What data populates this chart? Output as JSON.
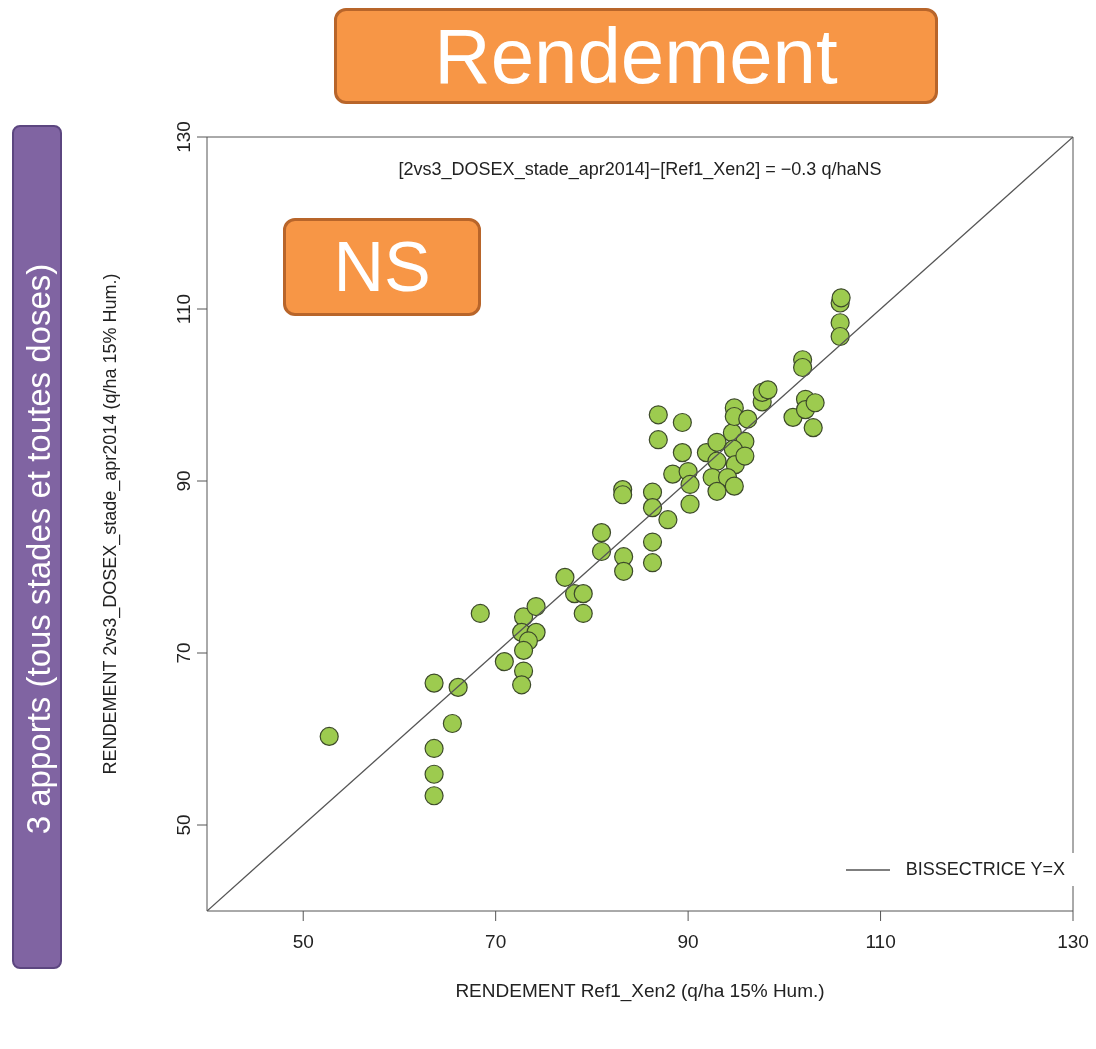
{
  "chart_data": {
    "type": "scatter",
    "title": "Rendement",
    "xlabel": "RENDEMENT Ref1_Xen2 (q/ha 15% Hum.)",
    "ylabel": "RENDEMENT 2vs3_DOSEX_stade_apr2014 (q/ha 15% Hum.)",
    "annotations": [
      "[2vs3_DOSEX_stade_apr2014]−[Ref1_Xen2] = −0.3 q/haNS",
      "NS",
      "3 apports (tous stades et toutes doses)"
    ],
    "xlim": [
      40,
      130
    ],
    "ylim": [
      40,
      130
    ],
    "xticks": [
      50,
      70,
      90,
      110,
      130
    ],
    "yticks": [
      50,
      70,
      90,
      110,
      130
    ],
    "grid": false,
    "legend": "bottom right",
    "marker": "circle",
    "series": [
      {
        "color": "#9dcb4f",
        "x": [
          52.7,
          63.6,
          63.6,
          63.6,
          63.6,
          66.1,
          65.5,
          68.4,
          70.9,
          72.9,
          74.2,
          72.7,
          74.2,
          73.4,
          72.9,
          72.9,
          72.7,
          77.2,
          78.2,
          79.1,
          79.1,
          81.0,
          81.0,
          83.3,
          83.3,
          86.3,
          86.3,
          83.2,
          83.2,
          86.3,
          86.3,
          87.9,
          88.4,
          90.0,
          90.2,
          90.2,
          86.9,
          89.4,
          86.9,
          89.4,
          91.9,
          93.0,
          94.6,
          95.9,
          94.7,
          93.0,
          94.9,
          95.9,
          92.5,
          94.1,
          93.0,
          94.8,
          94.8,
          94.8,
          96.2,
          97.7,
          97.7,
          98.3,
          100.9,
          102.2,
          102.2,
          103.2,
          103.0,
          101.9,
          101.9,
          105.8,
          105.8,
          105.8,
          105.9
        ],
        "values": [
          60.3,
          66.5,
          58.9,
          55.9,
          53.4,
          66.0,
          61.8,
          74.6,
          69.0,
          74.2,
          75.4,
          72.4,
          72.4,
          71.4,
          70.3,
          67.9,
          66.3,
          78.8,
          76.9,
          76.9,
          74.6,
          84.0,
          81.8,
          81.2,
          79.5,
          82.9,
          80.5,
          89.0,
          88.4,
          88.7,
          86.9,
          85.5,
          90.8,
          91.1,
          89.6,
          87.3,
          97.7,
          96.8,
          94.8,
          93.3,
          93.3,
          94.5,
          95.6,
          94.6,
          93.7,
          92.3,
          91.9,
          92.9,
          90.4,
          90.4,
          88.8,
          89.4,
          98.5,
          97.5,
          97.2,
          99.2,
          100.3,
          100.6,
          97.4,
          99.5,
          98.3,
          99.1,
          96.2,
          104.1,
          103.2,
          110.7,
          108.4,
          106.8,
          111.3
        ]
      },
      {
        "type": "line",
        "name": "BISSECTRICE Y=X",
        "color": "#555555",
        "line_style": "solid",
        "marker": "none",
        "x": [
          40,
          130
        ],
        "values": [
          40,
          130
        ]
      }
    ]
  }
}
